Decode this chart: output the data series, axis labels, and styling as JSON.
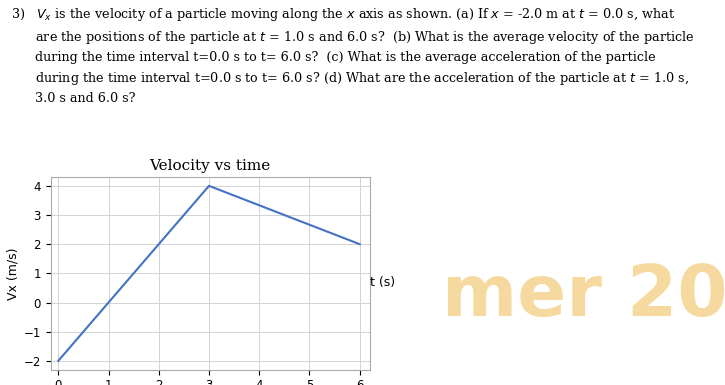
{
  "title": "Velocity vs time",
  "xlabel": "t (s)",
  "ylabel": "Vx (m/s)",
  "line_x": [
    0,
    3,
    6
  ],
  "line_y": [
    -2,
    4,
    2
  ],
  "line_color": "#4472C4",
  "line_width": 1.5,
  "xlim": [
    -0.15,
    6.2
  ],
  "ylim": [
    -2.3,
    4.3
  ],
  "xticks": [
    0,
    1,
    2,
    3,
    4,
    5,
    6
  ],
  "yticks": [
    -2,
    -1,
    0,
    1,
    2,
    3,
    4
  ],
  "grid_color": "#D3D3D3",
  "background_color": "#FFFFFF",
  "watermark_color": "#F0C060",
  "watermark_alpha": 0.6,
  "title_fontsize": 11,
  "tick_fontsize": 8.5,
  "label_fontsize": 9,
  "text_fontsize": 9.2
}
